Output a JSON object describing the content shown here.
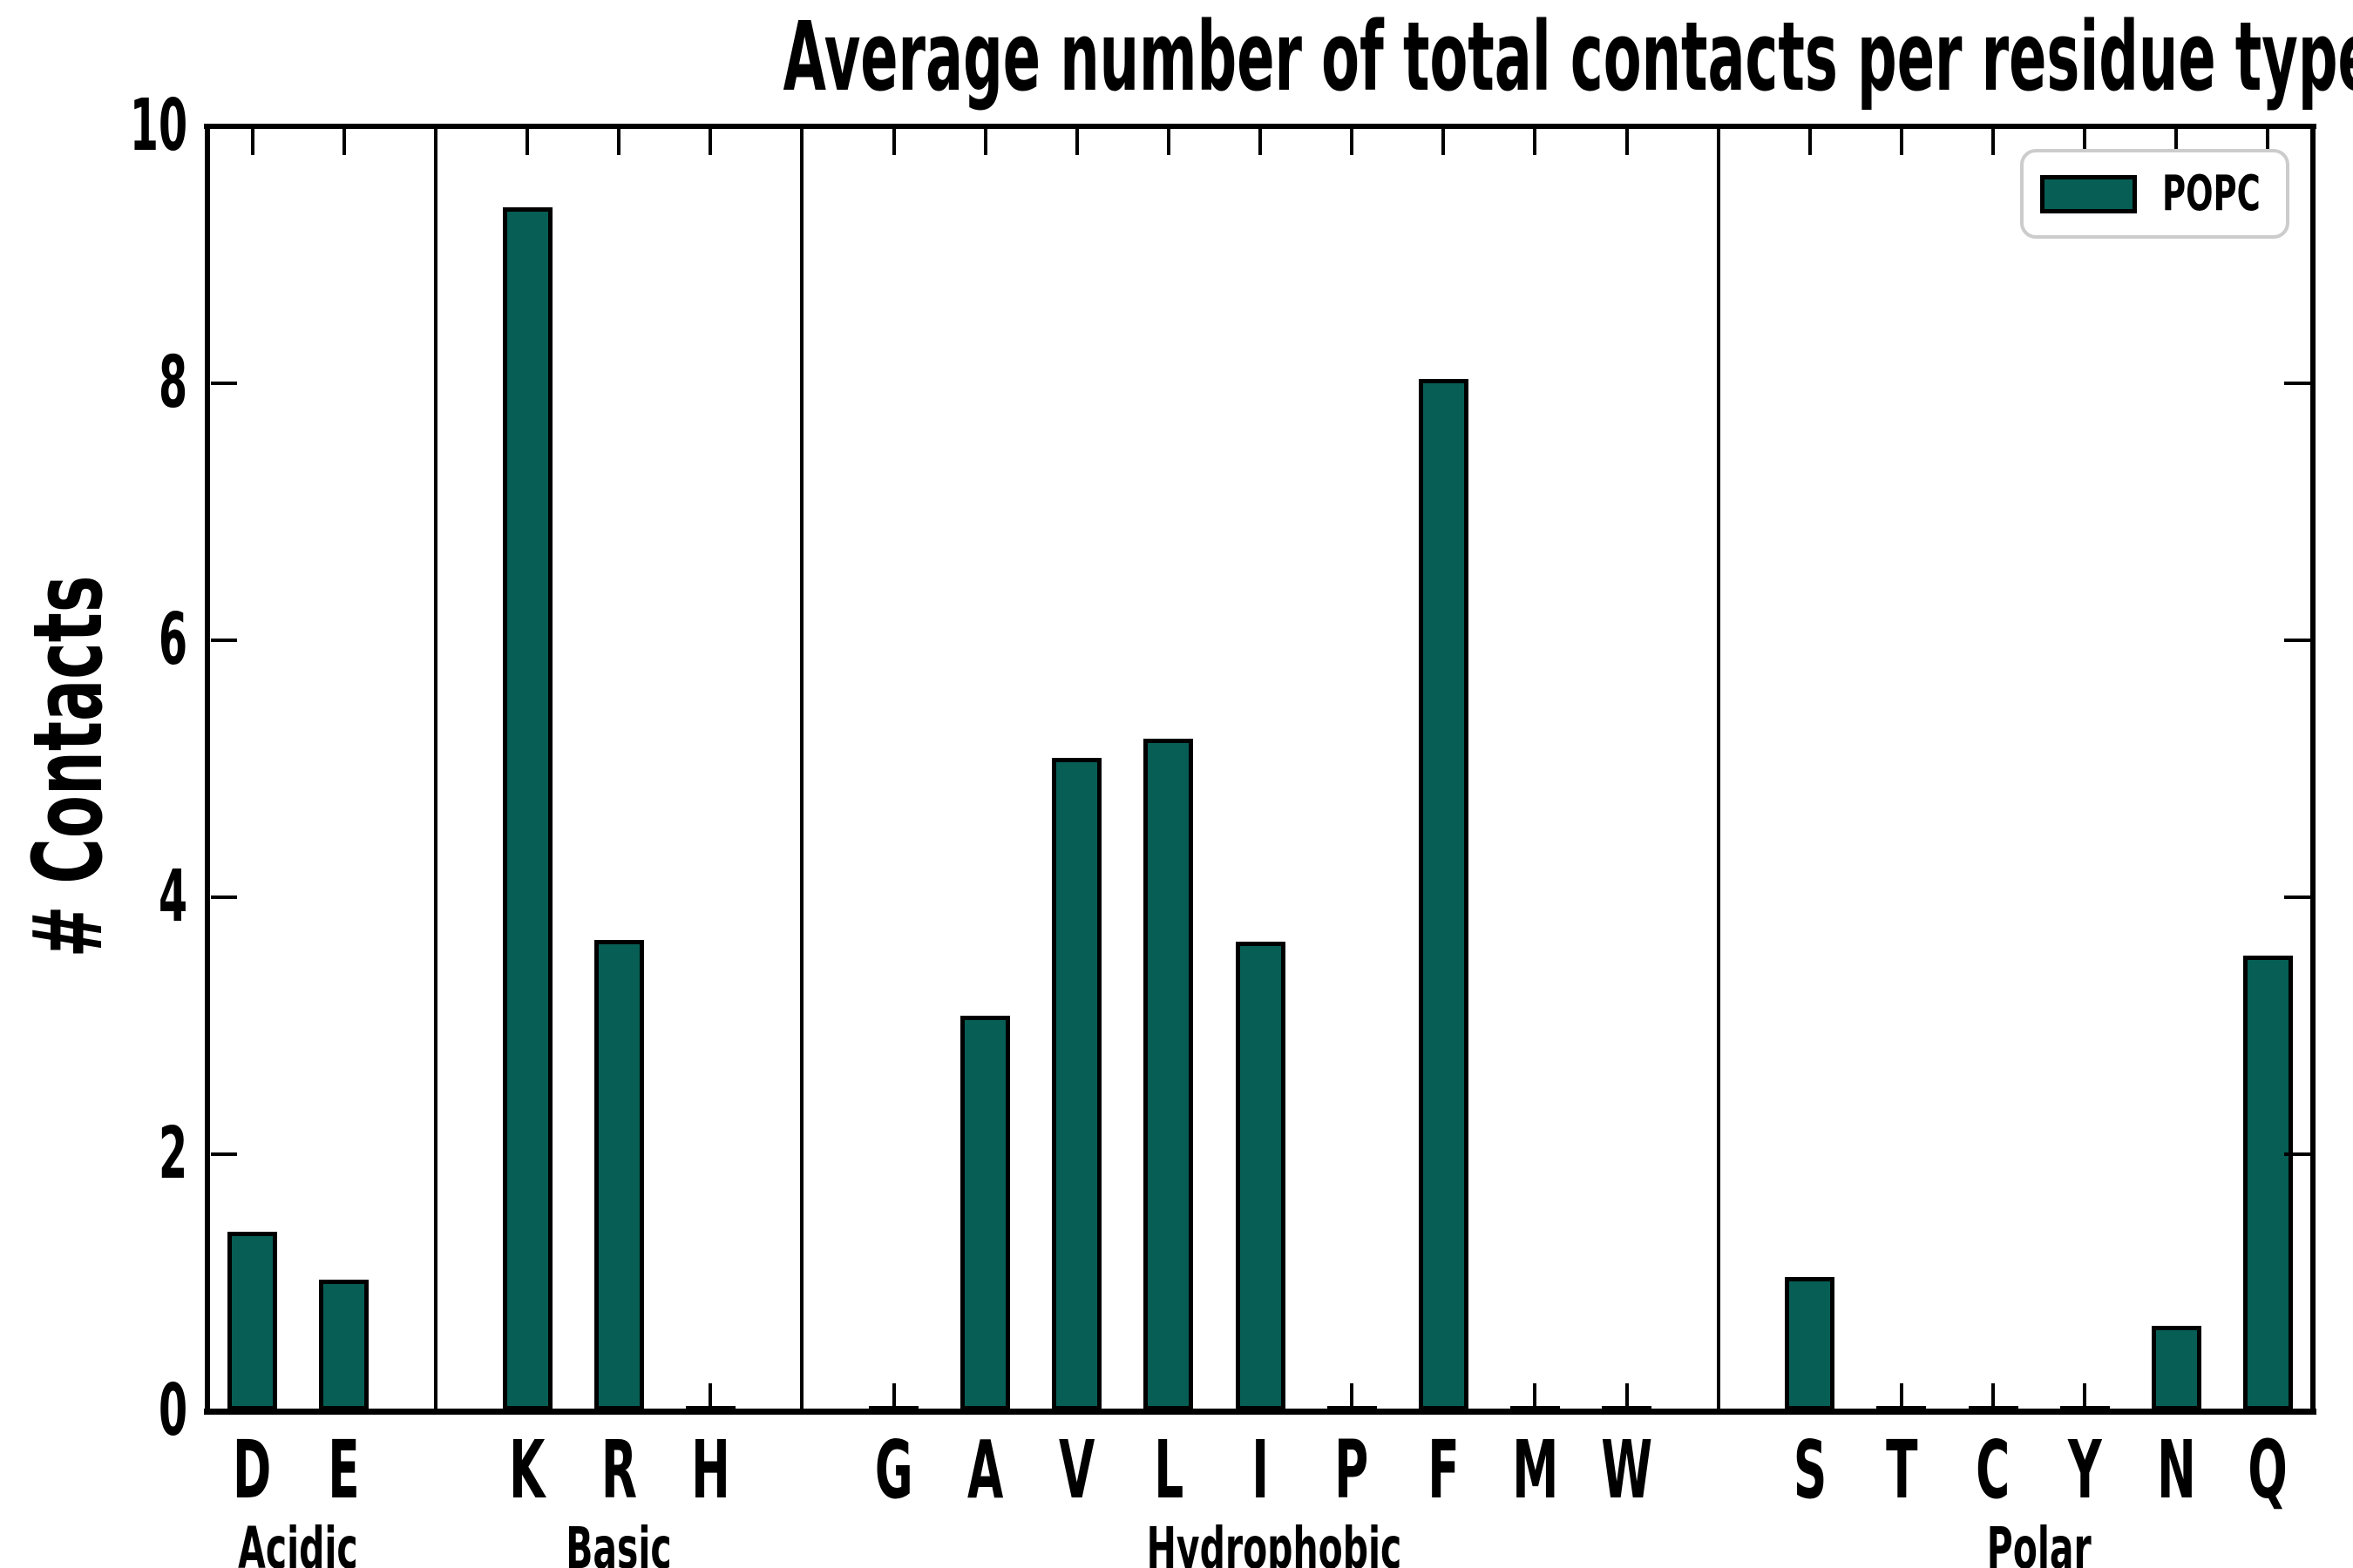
{
  "title": "Average number of total contacts per residue type",
  "ylabel": "# Contacts",
  "legend": {
    "label": "POPC"
  },
  "colors": {
    "bar_fill": "#075e55",
    "bar_edge": "#000000",
    "axis": "#000000",
    "legend_border": "#cccccc",
    "background": "#ffffff"
  },
  "chart_data": {
    "type": "bar",
    "title": "Average number of total contacts per residue type",
    "xlabel": "",
    "ylabel": "# Contacts",
    "ylim": [
      0,
      10
    ],
    "yticks": [
      0,
      2,
      4,
      6,
      8,
      10
    ],
    "grid": false,
    "legend_position": "upper right",
    "legend_entries": [
      "POPC"
    ],
    "categories": [
      "D",
      "E",
      "K",
      "R",
      "H",
      "G",
      "A",
      "V",
      "L",
      "I",
      "P",
      "F",
      "M",
      "W",
      "S",
      "T",
      "C",
      "Y",
      "N",
      "Q"
    ],
    "series": [
      {
        "name": "POPC",
        "values": [
          1.39,
          1.02,
          9.36,
          3.66,
          0.02,
          0.02,
          3.07,
          5.08,
          5.23,
          3.65,
          0.02,
          8.03,
          0.02,
          0.02,
          1.04,
          0.02,
          0.02,
          0.02,
          0.66,
          3.54
        ]
      }
    ],
    "groups": [
      {
        "label": "Acidic",
        "categories": [
          "D",
          "E"
        ],
        "values": [
          1.39,
          1.02
        ]
      },
      {
        "label": "Basic",
        "categories": [
          "K",
          "R",
          "H"
        ],
        "values": [
          9.36,
          3.66,
          0.02
        ]
      },
      {
        "label": "Hydrophobic",
        "categories": [
          "G",
          "A",
          "V",
          "L",
          "I",
          "P",
          "F",
          "M",
          "W"
        ],
        "values": [
          0.02,
          3.07,
          5.08,
          5.23,
          3.65,
          0.02,
          8.03,
          0.02,
          0.02
        ]
      },
      {
        "label": "Polar",
        "categories": [
          "S",
          "T",
          "C",
          "Y",
          "N",
          "Q"
        ],
        "values": [
          1.04,
          0.02,
          0.02,
          0.02,
          0.66,
          3.54
        ]
      }
    ]
  }
}
